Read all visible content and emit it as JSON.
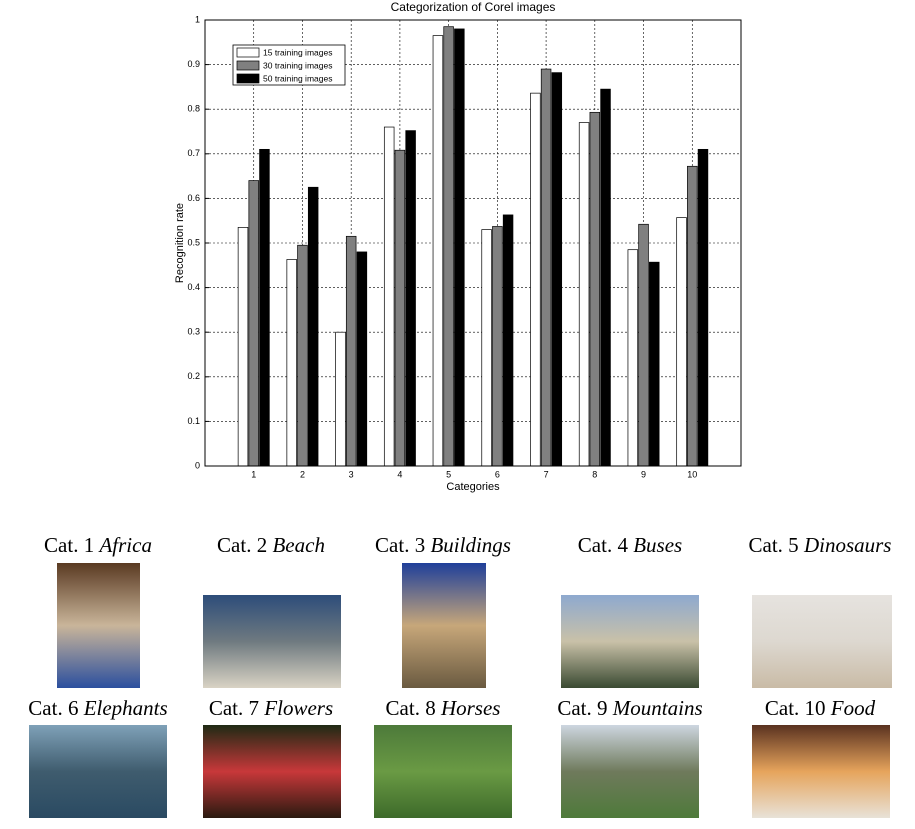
{
  "chart_data": {
    "type": "bar",
    "title": "Categorization of Corel images",
    "x_label": "Categories",
    "y_label": "Recognition rate",
    "x": [
      1,
      2,
      3,
      4,
      5,
      6,
      7,
      8,
      9,
      10
    ],
    "xlim": [
      0,
      11
    ],
    "xticks": [
      1,
      2,
      3,
      4,
      5,
      6,
      7,
      8,
      9,
      10
    ],
    "ylim": [
      0,
      1
    ],
    "yticks": [
      0,
      0.1,
      0.2,
      0.3,
      0.4,
      0.5,
      0.6,
      0.7,
      0.8,
      0.9,
      1
    ],
    "grid": true,
    "legend": "upper left",
    "series": [
      {
        "name": "15 training images",
        "color": "#ffffff",
        "values": [
          0.535,
          0.463,
          0.3,
          0.76,
          0.965,
          0.53,
          0.836,
          0.77,
          0.485,
          0.557
        ]
      },
      {
        "name": "30 training images",
        "color": "#808080",
        "values": [
          0.64,
          0.495,
          0.515,
          0.708,
          0.985,
          0.537,
          0.89,
          0.793,
          0.542,
          0.672
        ]
      },
      {
        "name": "50 training images",
        "color": "#000000",
        "values": [
          0.71,
          0.625,
          0.48,
          0.752,
          0.98,
          0.563,
          0.882,
          0.845,
          0.457,
          0.71
        ]
      }
    ]
  },
  "images": [
    {
      "label": "Cat. 1",
      "name": "Africa"
    },
    {
      "label": "Cat. 2",
      "name": "Beach"
    },
    {
      "label": "Cat. 3",
      "name": "Buildings"
    },
    {
      "label": "Cat. 4",
      "name": "Buses"
    },
    {
      "label": "Cat. 5",
      "name": "Dinosaurs"
    },
    {
      "label": "Cat. 6",
      "name": "Elephants"
    },
    {
      "label": "Cat. 7",
      "name": "Flowers"
    },
    {
      "label": "Cat. 8",
      "name": "Horses"
    },
    {
      "label": "Cat. 9",
      "name": "Mountains"
    },
    {
      "label": "Cat. 10",
      "name": "Food"
    }
  ]
}
